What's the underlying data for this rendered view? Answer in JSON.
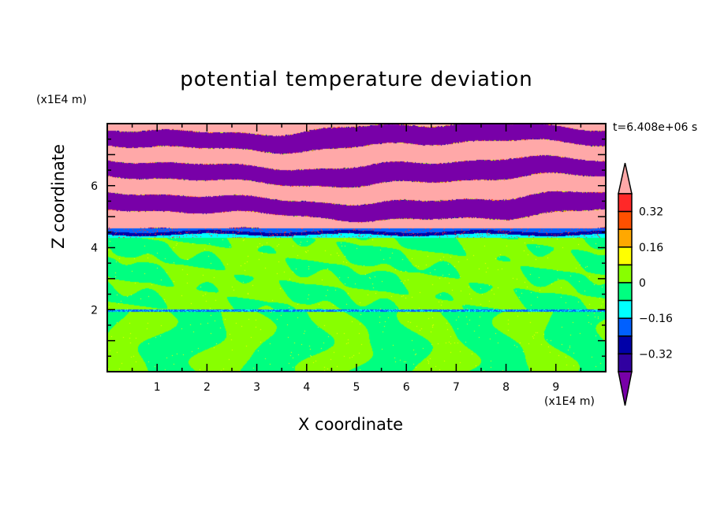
{
  "chart_data": {
    "type": "heatmap",
    "title": "potential temperature deviation",
    "xlabel": "X coordinate",
    "ylabel": "Z coordinate",
    "x_unit": "(x1E4 m)",
    "y_unit": "(x1E4 m)",
    "annotation": "t=6.408e+06 s",
    "xlim": [
      0,
      10
    ],
    "ylim": [
      0,
      8
    ],
    "x_ticks": [
      "1",
      "2",
      "3",
      "4",
      "5",
      "6",
      "7",
      "8",
      "9"
    ],
    "y_ticks": [
      "2",
      "4",
      "6"
    ],
    "colorbar": {
      "levels": [
        -0.4,
        -0.32,
        -0.24,
        -0.16,
        -0.08,
        0,
        0.08,
        0.16,
        0.24,
        0.32,
        0.4
      ],
      "tick_labels": [
        "0.32",
        "0.16",
        "0",
        "-0.16",
        "-0.32"
      ],
      "tick_values": [
        0.32,
        0.16,
        0,
        -0.16,
        -0.32
      ],
      "colors_top_to_bottom": [
        "#ff2828",
        "#ff5000",
        "#ffa800",
        "#ffff00",
        "#88ff00",
        "#00ff80",
        "#00ffff",
        "#0060ff",
        "#0000a8",
        "#3000a0"
      ],
      "over_color": "#ffa8a8",
      "under_color": "#7800a8",
      "extend": "both"
    }
  }
}
